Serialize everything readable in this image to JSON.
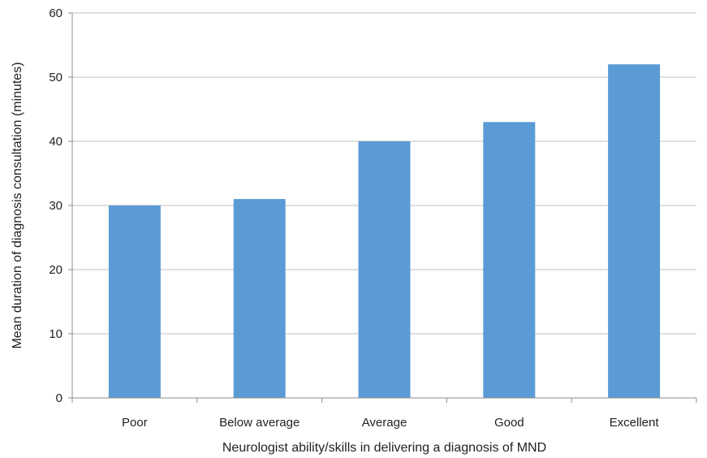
{
  "chart_data": {
    "type": "bar",
    "title": "",
    "xlabel": "Neurologist ability/skills in delivering a diagnosis of MND",
    "ylabel": "Mean duration of diagnosis consultation (minutes)",
    "categories": [
      "Poor",
      "Below average",
      "Average",
      "Good",
      "Excellent"
    ],
    "values": [
      30,
      31,
      40,
      43,
      52
    ],
    "ylim": [
      0,
      60
    ],
    "yticks": [
      0,
      10,
      20,
      30,
      40,
      50,
      60
    ],
    "grid": "horizontal",
    "legend": "none",
    "bar_color": "#5B9BD5",
    "grid_color": "#BFBFBF",
    "axis_color": "#8C8C8C"
  }
}
